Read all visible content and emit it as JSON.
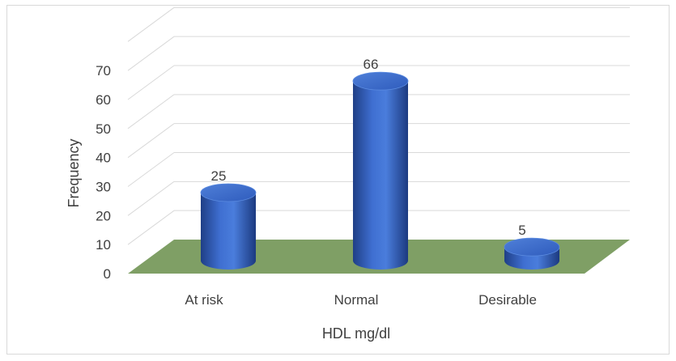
{
  "chart_data": {
    "type": "bar",
    "style": "3d-cylinder",
    "categories": [
      "At risk",
      "Normal",
      "Desirable"
    ],
    "values": [
      25,
      66,
      5
    ],
    "data_labels": [
      "25",
      "66",
      "5"
    ],
    "title": "",
    "xlabel": "HDL mg/dl",
    "ylabel": "Frequency",
    "ylim": [
      0,
      70
    ],
    "yticks": [
      "0",
      "10",
      "20",
      "30",
      "40",
      "50",
      "60",
      "70"
    ],
    "grid": true,
    "legend": "none",
    "colors": {
      "bar": "#4472c4",
      "floor": "#7f9f65",
      "grid": "#d9d9d9",
      "text": "#404040"
    }
  }
}
